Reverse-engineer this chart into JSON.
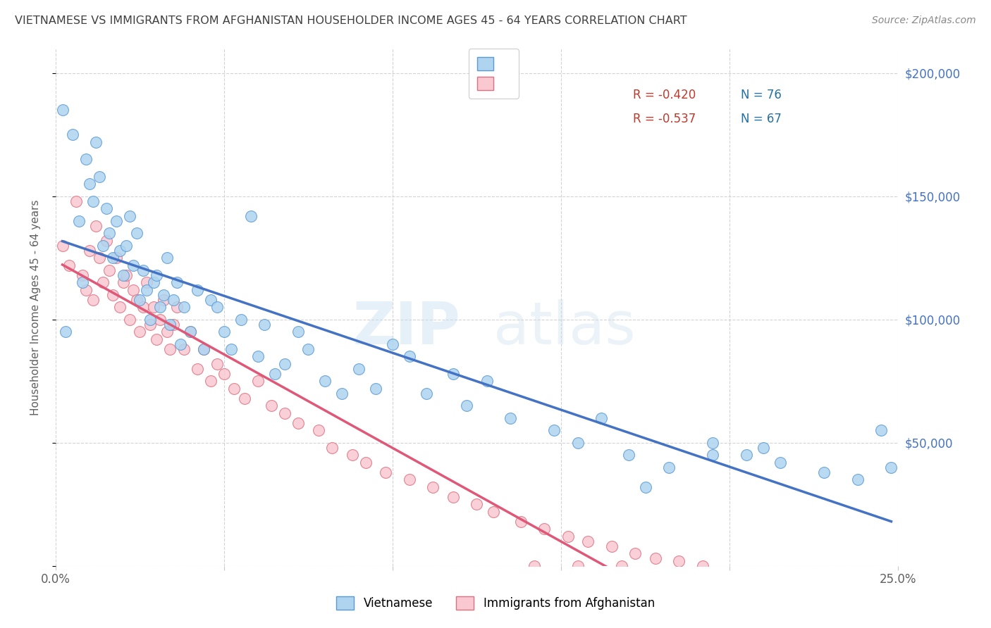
{
  "title": "VIETNAMESE VS IMMIGRANTS FROM AFGHANISTAN HOUSEHOLDER INCOME AGES 45 - 64 YEARS CORRELATION CHART",
  "source": "Source: ZipAtlas.com",
  "ylabel": "Householder Income Ages 45 - 64 years",
  "xlim": [
    0.0,
    0.25
  ],
  "ylim": [
    0,
    210000
  ],
  "series1_label": "Vietnamese",
  "series1_color": "#aed4f0",
  "series1_edge_color": "#5b9bd5",
  "series1_line_color": "#4472C4",
  "series1_R": "-0.420",
  "series1_N": "76",
  "series2_label": "Immigrants from Afghanistan",
  "series2_color": "#f9c8d0",
  "series2_edge_color": "#e07080",
  "series2_line_color": "#e05878",
  "series2_R": "-0.537",
  "series2_N": "67",
  "watermark_zip": "ZIP",
  "watermark_atlas": "atlas",
  "background_color": "#ffffff",
  "grid_color": "#c8c8c8",
  "title_color": "#404040",
  "axis_color": "#606060",
  "right_axis_color": "#4472C4",
  "viet_x": [
    0.002,
    0.003,
    0.005,
    0.007,
    0.008,
    0.009,
    0.01,
    0.011,
    0.012,
    0.013,
    0.014,
    0.015,
    0.016,
    0.017,
    0.018,
    0.019,
    0.02,
    0.021,
    0.022,
    0.023,
    0.024,
    0.025,
    0.026,
    0.027,
    0.028,
    0.029,
    0.03,
    0.031,
    0.032,
    0.033,
    0.034,
    0.035,
    0.036,
    0.037,
    0.038,
    0.04,
    0.042,
    0.044,
    0.046,
    0.048,
    0.05,
    0.052,
    0.055,
    0.058,
    0.06,
    0.062,
    0.065,
    0.068,
    0.072,
    0.075,
    0.08,
    0.085,
    0.09,
    0.095,
    0.1,
    0.105,
    0.11,
    0.118,
    0.122,
    0.128,
    0.135,
    0.148,
    0.155,
    0.162,
    0.17,
    0.182,
    0.195,
    0.205,
    0.215,
    0.228,
    0.238,
    0.245,
    0.248,
    0.21,
    0.195,
    0.175
  ],
  "viet_y": [
    185000,
    95000,
    175000,
    140000,
    115000,
    165000,
    155000,
    148000,
    172000,
    158000,
    130000,
    145000,
    135000,
    125000,
    140000,
    128000,
    118000,
    130000,
    142000,
    122000,
    135000,
    108000,
    120000,
    112000,
    100000,
    115000,
    118000,
    105000,
    110000,
    125000,
    98000,
    108000,
    115000,
    90000,
    105000,
    95000,
    112000,
    88000,
    108000,
    105000,
    95000,
    88000,
    100000,
    142000,
    85000,
    98000,
    78000,
    82000,
    95000,
    88000,
    75000,
    70000,
    80000,
    72000,
    90000,
    85000,
    70000,
    78000,
    65000,
    75000,
    60000,
    55000,
    50000,
    60000,
    45000,
    40000,
    50000,
    45000,
    42000,
    38000,
    35000,
    55000,
    40000,
    48000,
    45000,
    32000
  ],
  "afghan_x": [
    0.002,
    0.004,
    0.006,
    0.008,
    0.009,
    0.01,
    0.011,
    0.012,
    0.013,
    0.014,
    0.015,
    0.016,
    0.017,
    0.018,
    0.019,
    0.02,
    0.021,
    0.022,
    0.023,
    0.024,
    0.025,
    0.026,
    0.027,
    0.028,
    0.029,
    0.03,
    0.031,
    0.032,
    0.033,
    0.034,
    0.035,
    0.036,
    0.038,
    0.04,
    0.042,
    0.044,
    0.046,
    0.048,
    0.05,
    0.053,
    0.056,
    0.06,
    0.064,
    0.068,
    0.072,
    0.078,
    0.082,
    0.088,
    0.092,
    0.098,
    0.105,
    0.112,
    0.118,
    0.125,
    0.13,
    0.138,
    0.145,
    0.152,
    0.158,
    0.165,
    0.172,
    0.178,
    0.185,
    0.192,
    0.168,
    0.155,
    0.142
  ],
  "afghan_y": [
    130000,
    122000,
    148000,
    118000,
    112000,
    128000,
    108000,
    138000,
    125000,
    115000,
    132000,
    120000,
    110000,
    125000,
    105000,
    115000,
    118000,
    100000,
    112000,
    108000,
    95000,
    105000,
    115000,
    98000,
    105000,
    92000,
    100000,
    108000,
    95000,
    88000,
    98000,
    105000,
    88000,
    95000,
    80000,
    88000,
    75000,
    82000,
    78000,
    72000,
    68000,
    75000,
    65000,
    62000,
    58000,
    55000,
    48000,
    45000,
    42000,
    38000,
    35000,
    32000,
    28000,
    25000,
    22000,
    18000,
    15000,
    12000,
    10000,
    8000,
    5000,
    3000,
    2000,
    0,
    0,
    0,
    0
  ]
}
